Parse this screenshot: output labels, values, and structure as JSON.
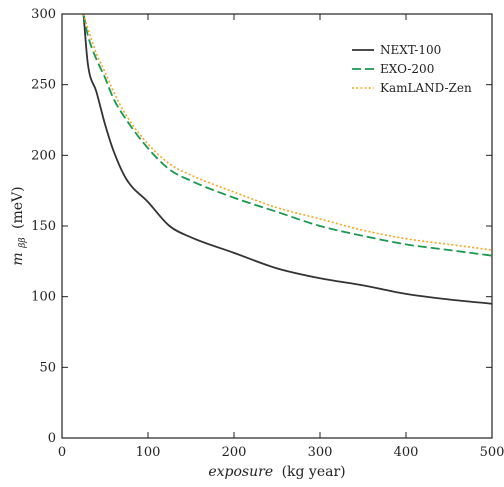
{
  "chart_data": {
    "type": "line",
    "title": "",
    "xlabel": "exposure",
    "xlabel_unit": "(kg year)",
    "ylabel_symbol": "m",
    "ylabel_subscript": "ββ",
    "ylabel_unit": "(meV)",
    "xlim": [
      0,
      500
    ],
    "ylim": [
      0,
      300
    ],
    "x_ticks": [
      0,
      100,
      200,
      300,
      400,
      500
    ],
    "y_ticks": [
      0,
      50,
      100,
      150,
      200,
      250,
      300
    ],
    "x_tick_labels": [
      "0",
      "100",
      "200",
      "300",
      "400",
      "500"
    ],
    "y_tick_labels": [
      "0",
      "50",
      "100",
      "150",
      "200",
      "250",
      "300"
    ],
    "grid": false,
    "legend_position": "top-right",
    "x": [
      25,
      30,
      40,
      50,
      60,
      75,
      100,
      125,
      150,
      200,
      250,
      300,
      350,
      400,
      450,
      500
    ],
    "series": [
      {
        "name": "NEXT-100",
        "color": "#333333",
        "dash": "solid",
        "values": [
          300,
          265,
          245,
          222,
          203,
          183,
          167,
          150,
          142,
          131,
          120,
          113,
          108,
          102,
          98,
          95
        ]
      },
      {
        "name": "EXO-200",
        "color": "#1a9850",
        "dash": "dashed",
        "values": [
          300,
          285,
          268,
          255,
          240,
          225,
          205,
          190,
          182,
          170,
          160,
          150,
          143,
          137,
          133,
          129
        ]
      },
      {
        "name": "KamLAND-Zen",
        "color": "#f5a623",
        "dash": "dotted",
        "values": [
          300,
          290,
          272,
          259,
          245,
          228,
          208,
          194,
          186,
          174,
          163,
          155,
          147,
          141,
          137,
          133
        ]
      }
    ]
  }
}
